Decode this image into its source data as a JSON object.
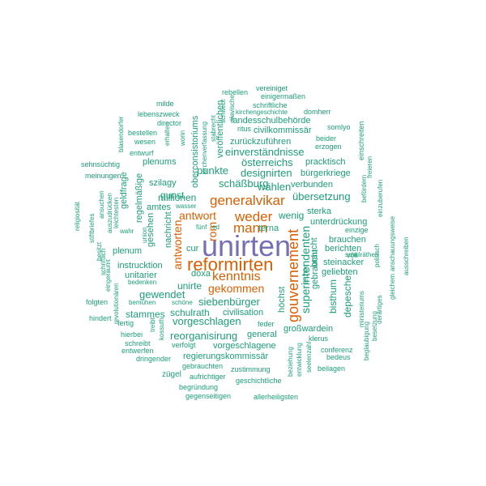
{
  "colors": {
    "purple": "#7570b3",
    "orange": "#d95f02",
    "green": "#1b9e77"
  },
  "words": [
    {
      "text": "unirten",
      "color": "purple"
    },
    {
      "text": "reformirten",
      "color": "orange"
    },
    {
      "text": "gouvernement",
      "color": "orange"
    },
    {
      "text": "generalvikar",
      "color": "orange"
    },
    {
      "text": "weder",
      "color": "orange"
    },
    {
      "text": "mann",
      "color": "orange"
    },
    {
      "text": "kenntnis",
      "color": "orange"
    },
    {
      "text": "antworten",
      "color": "orange"
    },
    {
      "text": "antwort",
      "color": "orange"
    },
    {
      "text": "gekommen",
      "color": "orange"
    },
    {
      "text": "rom",
      "color": "orange"
    },
    {
      "text": "schäßburg",
      "color": "green"
    },
    {
      "text": "wählen",
      "color": "green"
    },
    {
      "text": "punkte",
      "color": "green"
    },
    {
      "text": "designirten",
      "color": "green"
    },
    {
      "text": "österreichs",
      "color": "green"
    },
    {
      "text": "einverständnisse",
      "color": "green"
    },
    {
      "text": "zurückzuführen",
      "color": "green"
    },
    {
      "text": "landesschulbehörde",
      "color": "green"
    },
    {
      "text": "civilkommissär",
      "color": "green"
    },
    {
      "text": "vereiniget",
      "color": "green"
    },
    {
      "text": "einigermaßen",
      "color": "green"
    },
    {
      "text": "rebellen",
      "color": "green"
    },
    {
      "text": "schriftliche",
      "color": "green"
    },
    {
      "text": "kirchengeschichte",
      "color": "green"
    },
    {
      "text": "domherr",
      "color": "green"
    },
    {
      "text": "ritus",
      "color": "green"
    },
    {
      "text": "somlyo",
      "color": "green"
    },
    {
      "text": "beider",
      "color": "green"
    },
    {
      "text": "erzogen",
      "color": "green"
    },
    {
      "text": "einschreiten",
      "color": "green"
    },
    {
      "text": "pracktisch",
      "color": "green"
    },
    {
      "text": "bürgerkriege",
      "color": "green"
    },
    {
      "text": "verbunden",
      "color": "green"
    },
    {
      "text": "übersetzung",
      "color": "green"
    },
    {
      "text": "wenig",
      "color": "green"
    },
    {
      "text": "sterka",
      "color": "green"
    },
    {
      "text": "unterdrückung",
      "color": "green"
    },
    {
      "text": "brauchen",
      "color": "green"
    },
    {
      "text": "berichten",
      "color": "green"
    },
    {
      "text": "geliebten",
      "color": "green"
    },
    {
      "text": "steinacker",
      "color": "green"
    },
    {
      "text": "voll",
      "color": "green"
    },
    {
      "text": "einzige",
      "color": "green"
    },
    {
      "text": "schulräthen",
      "color": "green"
    },
    {
      "text": "politisch",
      "color": "green"
    },
    {
      "text": "terna",
      "color": "green"
    },
    {
      "text": "superintendenten",
      "color": "green"
    },
    {
      "text": "braucht",
      "color": "green"
    },
    {
      "text": "gebraucht",
      "color": "green"
    },
    {
      "text": "bisthum",
      "color": "green"
    },
    {
      "text": "depesche",
      "color": "green"
    },
    {
      "text": "ministeriums",
      "color": "green"
    },
    {
      "text": "höchst",
      "color": "green"
    },
    {
      "text": "letzten",
      "color": "green"
    },
    {
      "text": "siebenbürger",
      "color": "green"
    },
    {
      "text": "civilisation",
      "color": "green"
    },
    {
      "text": "feder",
      "color": "green"
    },
    {
      "text": "general",
      "color": "green"
    },
    {
      "text": "großwardein",
      "color": "green"
    },
    {
      "text": "klerus",
      "color": "green"
    },
    {
      "text": "conferenz",
      "color": "green"
    },
    {
      "text": "bedeus",
      "color": "green"
    },
    {
      "text": "beilagen",
      "color": "green"
    },
    {
      "text": "beziehung",
      "color": "green"
    },
    {
      "text": "entwicklung",
      "color": "green"
    },
    {
      "text": "seelenzahl",
      "color": "green"
    },
    {
      "text": "beglaubigung",
      "color": "green"
    },
    {
      "text": "besetzung",
      "color": "green"
    },
    {
      "text": "derartiges",
      "color": "green"
    },
    {
      "text": "gleichem",
      "color": "green"
    },
    {
      "text": "anschauungsweise",
      "color": "green"
    },
    {
      "text": "ausschreiben",
      "color": "green"
    },
    {
      "text": "einzuberufen",
      "color": "green"
    },
    {
      "text": "befördern",
      "color": "green"
    },
    {
      "text": "freieren",
      "color": "green"
    },
    {
      "text": "vorgeschlagen",
      "color": "green"
    },
    {
      "text": "vorgeschlagene",
      "color": "green"
    },
    {
      "text": "reorganisirung",
      "color": "green"
    },
    {
      "text": "regierungskommissär",
      "color": "green"
    },
    {
      "text": "schulrath",
      "color": "green"
    },
    {
      "text": "stammes",
      "color": "green"
    },
    {
      "text": "gewendet",
      "color": "green"
    },
    {
      "text": "unirte",
      "color": "green"
    },
    {
      "text": "doxa",
      "color": "green"
    },
    {
      "text": "cur",
      "color": "green"
    },
    {
      "text": "millionen",
      "color": "green"
    },
    {
      "text": "gunst",
      "color": "green"
    },
    {
      "text": "szilagy",
      "color": "green"
    },
    {
      "text": "plenums",
      "color": "green"
    },
    {
      "text": "amtes",
      "color": "green"
    },
    {
      "text": "nachricht",
      "color": "green"
    },
    {
      "text": "wasser",
      "color": "green"
    },
    {
      "text": "fünf",
      "color": "green"
    },
    {
      "text": "ed",
      "color": "green"
    },
    {
      "text": "instrucktion",
      "color": "green"
    },
    {
      "text": "unitarier",
      "color": "green"
    },
    {
      "text": "plenum",
      "color": "green"
    },
    {
      "text": "gesehen",
      "color": "green"
    },
    {
      "text": "regelmäßige",
      "color": "green"
    },
    {
      "text": "geldfrage",
      "color": "green"
    },
    {
      "text": "meinungen",
      "color": "green"
    },
    {
      "text": "sehnsüchtig",
      "color": "green"
    },
    {
      "text": "entwurf",
      "color": "green"
    },
    {
      "text": "wesen",
      "color": "green"
    },
    {
      "text": "bestellen",
      "color": "green"
    },
    {
      "text": "director",
      "color": "green"
    },
    {
      "text": "lebenszweck",
      "color": "green"
    },
    {
      "text": "milde",
      "color": "green"
    },
    {
      "text": "erhalten",
      "color": "green"
    },
    {
      "text": "worin",
      "color": "green"
    },
    {
      "text": "oberconsistoriums",
      "color": "green"
    },
    {
      "text": "kirchenverfassung",
      "color": "green"
    },
    {
      "text": "stabrecht",
      "color": "green"
    },
    {
      "text": "schwebt",
      "color": "green"
    },
    {
      "text": "slavische",
      "color": "green"
    },
    {
      "text": "veröffentlichen",
      "color": "green"
    },
    {
      "text": "blasendorfer",
      "color": "green"
    },
    {
      "text": "religiosität",
      "color": "green"
    },
    {
      "text": "stiftbriefes",
      "color": "green"
    },
    {
      "text": "ansuchen",
      "color": "green"
    },
    {
      "text": "auszudrücken",
      "color": "green"
    },
    {
      "text": "leichtesten",
      "color": "green"
    },
    {
      "text": "wahr",
      "color": "green"
    },
    {
      "text": "union",
      "color": "green"
    },
    {
      "text": "besitzt",
      "color": "green"
    },
    {
      "text": "schriftlich",
      "color": "green"
    },
    {
      "text": "eingeräumt",
      "color": "green"
    },
    {
      "text": "revolutionären",
      "color": "green"
    },
    {
      "text": "bedenken",
      "color": "green"
    },
    {
      "text": "bemühen",
      "color": "green"
    },
    {
      "text": "schöne",
      "color": "green"
    },
    {
      "text": "folgten",
      "color": "green"
    },
    {
      "text": "fertig",
      "color": "green"
    },
    {
      "text": "hindert",
      "color": "green"
    },
    {
      "text": "treibt",
      "color": "green"
    },
    {
      "text": "kossuth",
      "color": "green"
    },
    {
      "text": "hierbei",
      "color": "green"
    },
    {
      "text": "schreibt",
      "color": "green"
    },
    {
      "text": "verfolgt",
      "color": "green"
    },
    {
      "text": "entwerfen",
      "color": "green"
    },
    {
      "text": "dringender",
      "color": "green"
    },
    {
      "text": "zügel",
      "color": "green"
    },
    {
      "text": "gebrauchten",
      "color": "green"
    },
    {
      "text": "aufrichtiger",
      "color": "green"
    },
    {
      "text": "zustimmung",
      "color": "green"
    },
    {
      "text": "geschichtliche",
      "color": "green"
    },
    {
      "text": "begründung",
      "color": "green"
    },
    {
      "text": "gegenseitigen",
      "color": "green"
    },
    {
      "text": "allerheiligsten",
      "color": "green"
    }
  ]
}
